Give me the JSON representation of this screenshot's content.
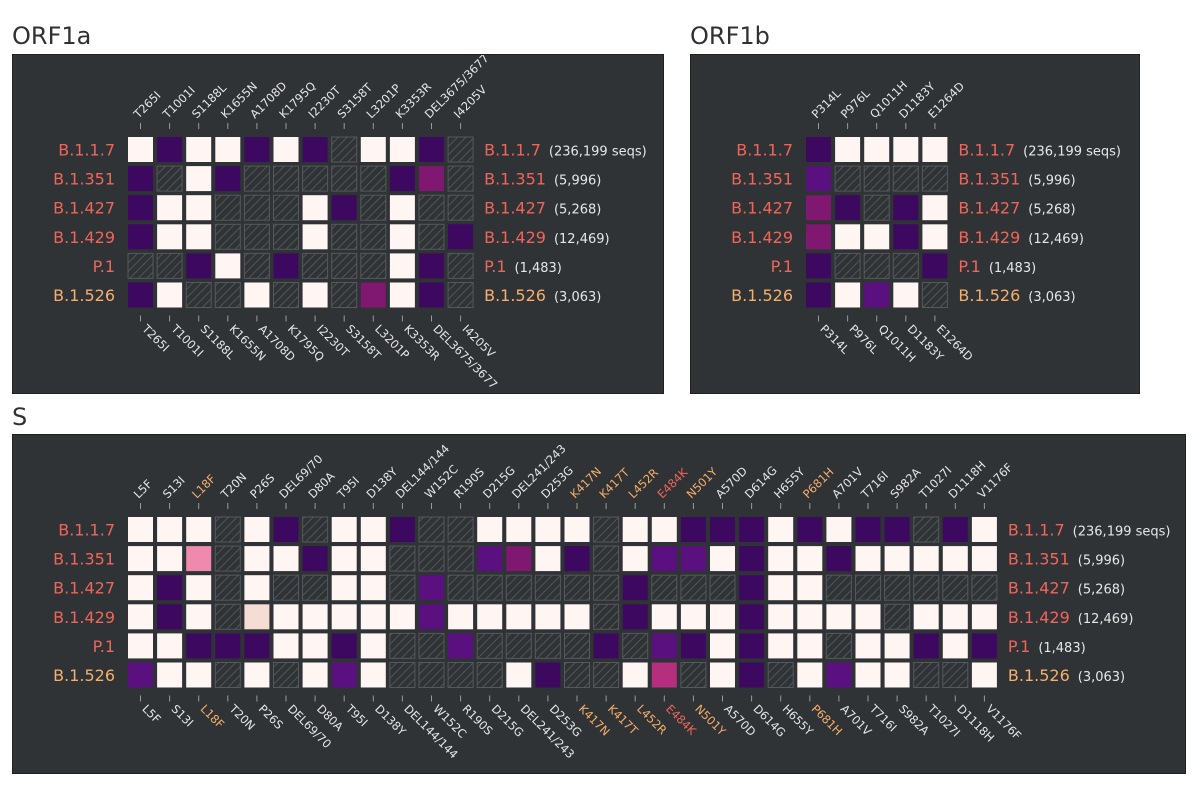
{
  "colors": {
    "panel_bg": "#303336",
    "absent": "#fff6f4",
    "na_hatch": "#4a4d51",
    "label_red": "#f0655a",
    "label_orange": "#f6ae6b",
    "label_white": "#e6e6e6",
    "tick": "#9a9a9a"
  },
  "color_scale": {
    "P": "#3c0860",
    "Q": "#5b1080",
    "M": "#801770",
    "R": "#b62e7e",
    "K": "#f08aac",
    "L": "#f5ddd6",
    "W": "#fff6f4"
  },
  "chart_data": [
    {
      "type": "heatmap",
      "title": "ORF1a",
      "columns": [
        {
          "label": "T265I"
        },
        {
          "label": "T1001I"
        },
        {
          "label": "S1188L"
        },
        {
          "label": "K1655N"
        },
        {
          "label": "A1708D"
        },
        {
          "label": "K1795Q"
        },
        {
          "label": "I2230T"
        },
        {
          "label": "S3158T"
        },
        {
          "label": "L3201P"
        },
        {
          "label": "K3353R"
        },
        {
          "label": "DEL3675/3677"
        },
        {
          "label": "I4205V"
        }
      ],
      "rows": [
        {
          "label": "B.1.1.7",
          "count": "(236,199 seqs)",
          "color": "red",
          "cells": "WPWWPWPNWWPN"
        },
        {
          "label": "B.1.351",
          "count": "(5,996)",
          "color": "red",
          "cells": "PNWPNNNNNPMN"
        },
        {
          "label": "B.1.427",
          "count": "(5,268)",
          "color": "red",
          "cells": "PWWNNNWPNWNN"
        },
        {
          "label": "B.1.429",
          "count": "(12,469)",
          "color": "red",
          "cells": "PWWNNNWNNWNP"
        },
        {
          "label": "P.1",
          "count": "(1,483)",
          "color": "red",
          "cells": "NNPWNPNNNWPN"
        },
        {
          "label": "B.1.526",
          "count": "(3,063)",
          "color": "orange",
          "cells": "PWNNWNWNMWPN"
        }
      ]
    },
    {
      "type": "heatmap",
      "title": "ORF1b",
      "columns": [
        {
          "label": "P314L"
        },
        {
          "label": "P976L"
        },
        {
          "label": "Q1011H"
        },
        {
          "label": "D1183Y"
        },
        {
          "label": "E1264D"
        }
      ],
      "rows": [
        {
          "label": "B.1.1.7",
          "count": "(236,199 seqs)",
          "color": "red",
          "cells": "PWWWW"
        },
        {
          "label": "B.1.351",
          "count": "(5,996)",
          "color": "red",
          "cells": "QNNNN"
        },
        {
          "label": "B.1.427",
          "count": "(5,268)",
          "color": "red",
          "cells": "MPNPW"
        },
        {
          "label": "B.1.429",
          "count": "(12,469)",
          "color": "red",
          "cells": "MWWPW"
        },
        {
          "label": "P.1",
          "count": "(1,483)",
          "color": "red",
          "cells": "PNNNP"
        },
        {
          "label": "B.1.526",
          "count": "(3,063)",
          "color": "orange",
          "cells": "PWQWN"
        }
      ]
    },
    {
      "type": "heatmap",
      "title": "S",
      "columns": [
        {
          "label": "L5F"
        },
        {
          "label": "S13I"
        },
        {
          "label": "L18F",
          "color": "orange"
        },
        {
          "label": "T20N"
        },
        {
          "label": "P26S"
        },
        {
          "label": "DEL69/70"
        },
        {
          "label": "D80A"
        },
        {
          "label": "T95I"
        },
        {
          "label": "D138Y"
        },
        {
          "label": "DEL144/144"
        },
        {
          "label": "W152C"
        },
        {
          "label": "R190S"
        },
        {
          "label": "D215G"
        },
        {
          "label": "DEL241/243"
        },
        {
          "label": "D253G"
        },
        {
          "label": "K417N",
          "color": "orange"
        },
        {
          "label": "K417T",
          "color": "orange"
        },
        {
          "label": "L452R",
          "color": "orange"
        },
        {
          "label": "E484K",
          "color": "red"
        },
        {
          "label": "N501Y",
          "color": "orange"
        },
        {
          "label": "A570D"
        },
        {
          "label": "D614G"
        },
        {
          "label": "H655Y"
        },
        {
          "label": "P681H",
          "color": "orange"
        },
        {
          "label": "A701V"
        },
        {
          "label": "T716I"
        },
        {
          "label": "S982A"
        },
        {
          "label": "T1027I"
        },
        {
          "label": "D1118H"
        },
        {
          "label": "V1176F"
        }
      ],
      "rows": [
        {
          "label": "B.1.1.7",
          "count": "(236,199 seqs)",
          "color": "red",
          "cells": "WWWNWPNWWPNNWWWWNWWPPPWPWPPNPW"
        },
        {
          "label": "B.1.351",
          "count": "(5,996)",
          "color": "red",
          "cells": "WWKNWWPWWNNNQMWPNWQQWPWWPWWWWW"
        },
        {
          "label": "B.1.427",
          "count": "(5,268)",
          "color": "red",
          "cells": "WPWNWNNWWNQNNNNNNPNNNPWWNNNNNN"
        },
        {
          "label": "B.1.429",
          "count": "(12,469)",
          "color": "red",
          "cells": "WPWNLWWWWWQWWWWWNPWWWPWWWWNWWW"
        },
        {
          "label": "P.1",
          "count": "(1,483)",
          "color": "red",
          "cells": "WWPPPWWPWNNQNNNNPNQPWPWWNWWPWP"
        },
        {
          "label": "B.1.526",
          "count": "(3,063)",
          "color": "orange",
          "cells": "QWWNWNWQWNNNNWPNNWRNWPNWQWWNNW"
        }
      ]
    }
  ]
}
